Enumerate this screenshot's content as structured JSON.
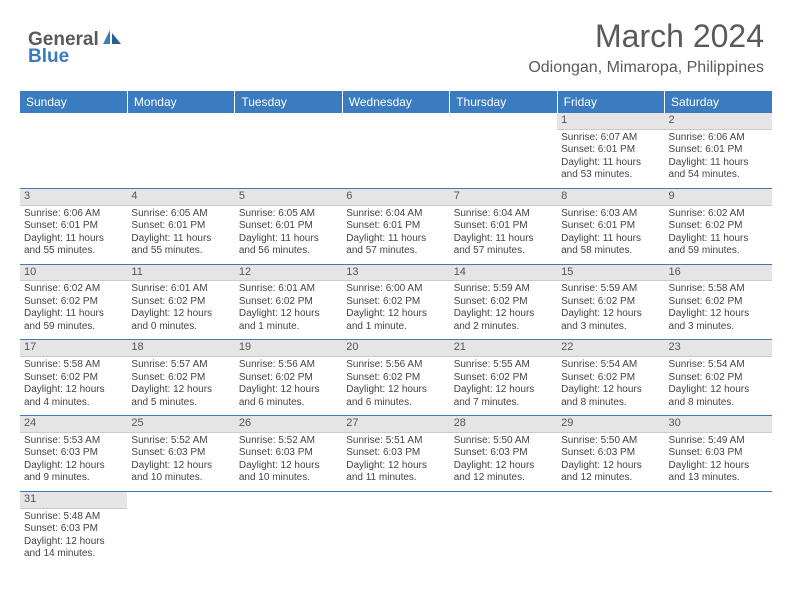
{
  "logo": {
    "text1": "General",
    "text2": "Blue"
  },
  "title": "March 2024",
  "location": "Odiongan, Mimaropa, Philippines",
  "colors": {
    "header_bg": "#3b7bbf",
    "header_text": "#ffffff",
    "daynum_bg": "#e5e5e5",
    "text": "#444444",
    "row_border": "#3b7bbf",
    "logo_gray": "#5a5a5a",
    "logo_blue": "#3b7bbf"
  },
  "weekdays": [
    "Sunday",
    "Monday",
    "Tuesday",
    "Wednesday",
    "Thursday",
    "Friday",
    "Saturday"
  ],
  "weeks": [
    [
      null,
      null,
      null,
      null,
      null,
      {
        "n": "1",
        "sr": "Sunrise: 6:07 AM",
        "ss": "Sunset: 6:01 PM",
        "d1": "Daylight: 11 hours",
        "d2": "and 53 minutes."
      },
      {
        "n": "2",
        "sr": "Sunrise: 6:06 AM",
        "ss": "Sunset: 6:01 PM",
        "d1": "Daylight: 11 hours",
        "d2": "and 54 minutes."
      }
    ],
    [
      {
        "n": "3",
        "sr": "Sunrise: 6:06 AM",
        "ss": "Sunset: 6:01 PM",
        "d1": "Daylight: 11 hours",
        "d2": "and 55 minutes."
      },
      {
        "n": "4",
        "sr": "Sunrise: 6:05 AM",
        "ss": "Sunset: 6:01 PM",
        "d1": "Daylight: 11 hours",
        "d2": "and 55 minutes."
      },
      {
        "n": "5",
        "sr": "Sunrise: 6:05 AM",
        "ss": "Sunset: 6:01 PM",
        "d1": "Daylight: 11 hours",
        "d2": "and 56 minutes."
      },
      {
        "n": "6",
        "sr": "Sunrise: 6:04 AM",
        "ss": "Sunset: 6:01 PM",
        "d1": "Daylight: 11 hours",
        "d2": "and 57 minutes."
      },
      {
        "n": "7",
        "sr": "Sunrise: 6:04 AM",
        "ss": "Sunset: 6:01 PM",
        "d1": "Daylight: 11 hours",
        "d2": "and 57 minutes."
      },
      {
        "n": "8",
        "sr": "Sunrise: 6:03 AM",
        "ss": "Sunset: 6:01 PM",
        "d1": "Daylight: 11 hours",
        "d2": "and 58 minutes."
      },
      {
        "n": "9",
        "sr": "Sunrise: 6:02 AM",
        "ss": "Sunset: 6:02 PM",
        "d1": "Daylight: 11 hours",
        "d2": "and 59 minutes."
      }
    ],
    [
      {
        "n": "10",
        "sr": "Sunrise: 6:02 AM",
        "ss": "Sunset: 6:02 PM",
        "d1": "Daylight: 11 hours",
        "d2": "and 59 minutes."
      },
      {
        "n": "11",
        "sr": "Sunrise: 6:01 AM",
        "ss": "Sunset: 6:02 PM",
        "d1": "Daylight: 12 hours",
        "d2": "and 0 minutes."
      },
      {
        "n": "12",
        "sr": "Sunrise: 6:01 AM",
        "ss": "Sunset: 6:02 PM",
        "d1": "Daylight: 12 hours",
        "d2": "and 1 minute."
      },
      {
        "n": "13",
        "sr": "Sunrise: 6:00 AM",
        "ss": "Sunset: 6:02 PM",
        "d1": "Daylight: 12 hours",
        "d2": "and 1 minute."
      },
      {
        "n": "14",
        "sr": "Sunrise: 5:59 AM",
        "ss": "Sunset: 6:02 PM",
        "d1": "Daylight: 12 hours",
        "d2": "and 2 minutes."
      },
      {
        "n": "15",
        "sr": "Sunrise: 5:59 AM",
        "ss": "Sunset: 6:02 PM",
        "d1": "Daylight: 12 hours",
        "d2": "and 3 minutes."
      },
      {
        "n": "16",
        "sr": "Sunrise: 5:58 AM",
        "ss": "Sunset: 6:02 PM",
        "d1": "Daylight: 12 hours",
        "d2": "and 3 minutes."
      }
    ],
    [
      {
        "n": "17",
        "sr": "Sunrise: 5:58 AM",
        "ss": "Sunset: 6:02 PM",
        "d1": "Daylight: 12 hours",
        "d2": "and 4 minutes."
      },
      {
        "n": "18",
        "sr": "Sunrise: 5:57 AM",
        "ss": "Sunset: 6:02 PM",
        "d1": "Daylight: 12 hours",
        "d2": "and 5 minutes."
      },
      {
        "n": "19",
        "sr": "Sunrise: 5:56 AM",
        "ss": "Sunset: 6:02 PM",
        "d1": "Daylight: 12 hours",
        "d2": "and 6 minutes."
      },
      {
        "n": "20",
        "sr": "Sunrise: 5:56 AM",
        "ss": "Sunset: 6:02 PM",
        "d1": "Daylight: 12 hours",
        "d2": "and 6 minutes."
      },
      {
        "n": "21",
        "sr": "Sunrise: 5:55 AM",
        "ss": "Sunset: 6:02 PM",
        "d1": "Daylight: 12 hours",
        "d2": "and 7 minutes."
      },
      {
        "n": "22",
        "sr": "Sunrise: 5:54 AM",
        "ss": "Sunset: 6:02 PM",
        "d1": "Daylight: 12 hours",
        "d2": "and 8 minutes."
      },
      {
        "n": "23",
        "sr": "Sunrise: 5:54 AM",
        "ss": "Sunset: 6:02 PM",
        "d1": "Daylight: 12 hours",
        "d2": "and 8 minutes."
      }
    ],
    [
      {
        "n": "24",
        "sr": "Sunrise: 5:53 AM",
        "ss": "Sunset: 6:03 PM",
        "d1": "Daylight: 12 hours",
        "d2": "and 9 minutes."
      },
      {
        "n": "25",
        "sr": "Sunrise: 5:52 AM",
        "ss": "Sunset: 6:03 PM",
        "d1": "Daylight: 12 hours",
        "d2": "and 10 minutes."
      },
      {
        "n": "26",
        "sr": "Sunrise: 5:52 AM",
        "ss": "Sunset: 6:03 PM",
        "d1": "Daylight: 12 hours",
        "d2": "and 10 minutes."
      },
      {
        "n": "27",
        "sr": "Sunrise: 5:51 AM",
        "ss": "Sunset: 6:03 PM",
        "d1": "Daylight: 12 hours",
        "d2": "and 11 minutes."
      },
      {
        "n": "28",
        "sr": "Sunrise: 5:50 AM",
        "ss": "Sunset: 6:03 PM",
        "d1": "Daylight: 12 hours",
        "d2": "and 12 minutes."
      },
      {
        "n": "29",
        "sr": "Sunrise: 5:50 AM",
        "ss": "Sunset: 6:03 PM",
        "d1": "Daylight: 12 hours",
        "d2": "and 12 minutes."
      },
      {
        "n": "30",
        "sr": "Sunrise: 5:49 AM",
        "ss": "Sunset: 6:03 PM",
        "d1": "Daylight: 12 hours",
        "d2": "and 13 minutes."
      }
    ],
    [
      {
        "n": "31",
        "sr": "Sunrise: 5:48 AM",
        "ss": "Sunset: 6:03 PM",
        "d1": "Daylight: 12 hours",
        "d2": "and 14 minutes."
      },
      null,
      null,
      null,
      null,
      null,
      null
    ]
  ]
}
